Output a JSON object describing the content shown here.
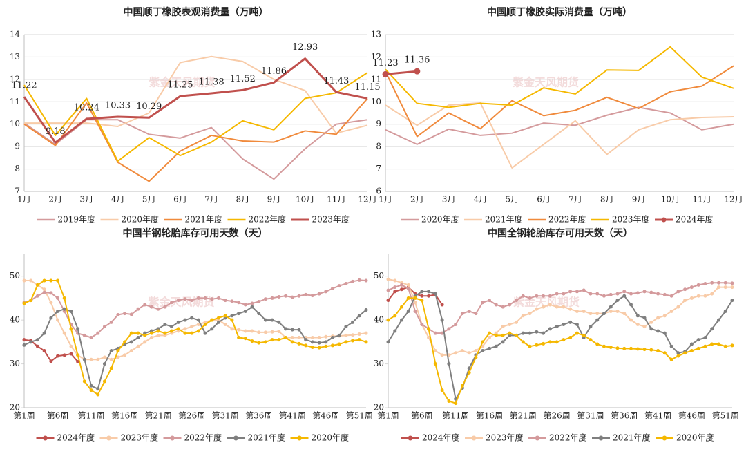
{
  "chart_data": [
    {
      "type": "line",
      "title": "中国顺丁橡胶表观消费量（万吨）",
      "watermark": "紫金天风期货",
      "categories": [
        "1月",
        "2月",
        "3月",
        "4月",
        "5月",
        "6月",
        "7月",
        "8月",
        "9月",
        "10月",
        "11月",
        "12月"
      ],
      "ylim": [
        7,
        14
      ],
      "yticks": [
        7,
        8,
        9,
        10,
        11,
        12,
        13,
        14
      ],
      "grid": true,
      "markers": false,
      "legend": "bottom",
      "series": [
        {
          "name": "2019年度",
          "color": "#d49a9c",
          "values": [
            10.05,
            9.1,
            10.2,
            10.2,
            9.55,
            9.38,
            9.85,
            8.45,
            7.55,
            8.9,
            10.0,
            10.2
          ]
        },
        {
          "name": "2020年度",
          "color": "#f8cba8",
          "values": [
            10.05,
            10.05,
            10.05,
            9.9,
            10.5,
            12.75,
            13.02,
            12.8,
            12.0,
            11.5,
            9.6,
            9.95
          ]
        },
        {
          "name": "2021年度",
          "color": "#f08a3c",
          "values": [
            10.0,
            9.05,
            10.95,
            8.3,
            7.45,
            8.8,
            9.5,
            9.25,
            9.2,
            9.7,
            9.55,
            11.15
          ]
        },
        {
          "name": "2022年度",
          "color": "#f5b800",
          "values": [
            11.75,
            9.5,
            11.15,
            8.35,
            9.4,
            8.6,
            9.2,
            10.15,
            9.75,
            11.15,
            11.4,
            12.3
          ]
        },
        {
          "name": "2023年度",
          "color": "#c0504d",
          "width": 3,
          "labels": true,
          "values": [
            11.22,
            9.18,
            10.24,
            10.33,
            10.29,
            11.25,
            11.38,
            11.52,
            11.86,
            12.93,
            11.43,
            11.15
          ]
        }
      ]
    },
    {
      "type": "line",
      "title": "中国顺丁橡胶实际消费量（万吨）",
      "watermark": "紫金天风期货",
      "categories": [
        "1月",
        "2月",
        "3月",
        "4月",
        "5月",
        "6月",
        "7月",
        "8月",
        "9月",
        "10月",
        "11月",
        "12月"
      ],
      "ylim": [
        6,
        13
      ],
      "yticks": [
        6,
        7,
        8,
        9,
        10,
        11,
        12,
        13
      ],
      "grid": true,
      "markers": false,
      "legend": "bottom",
      "series": [
        {
          "name": "2020年度",
          "color": "#d49a9c",
          "values": [
            8.75,
            8.1,
            8.78,
            8.5,
            8.6,
            9.05,
            8.95,
            9.4,
            9.75,
            9.5,
            8.75,
            9.0
          ]
        },
        {
          "name": "2021年度",
          "color": "#f8cba8",
          "values": [
            9.85,
            8.95,
            9.85,
            9.95,
            7.05,
            8.1,
            9.15,
            7.65,
            8.75,
            9.2,
            9.3,
            9.33
          ]
        },
        {
          "name": "2022年度",
          "color": "#f08a3c",
          "values": [
            11.35,
            8.45,
            9.5,
            8.8,
            10.05,
            9.38,
            9.62,
            10.2,
            9.7,
            10.45,
            10.7,
            11.6
          ]
        },
        {
          "name": "2023年度",
          "color": "#f5b800",
          "values": [
            11.45,
            9.93,
            9.75,
            9.93,
            9.85,
            10.62,
            10.35,
            11.42,
            11.4,
            12.45,
            11.1,
            10.6
          ]
        },
        {
          "name": "2024年度",
          "color": "#c0504d",
          "width": 3,
          "markers": true,
          "labels": true,
          "values": [
            11.23,
            11.36,
            null,
            null,
            null,
            null,
            null,
            null,
            null,
            null,
            null,
            null
          ]
        }
      ]
    },
    {
      "type": "line",
      "title": "中国半钢轮胎库存可用天数（天）",
      "watermark": "紫金天风期货",
      "categories": [
        "第1周",
        null,
        null,
        null,
        null,
        "第6周",
        null,
        null,
        null,
        null,
        "第11周",
        null,
        null,
        null,
        null,
        "第16周",
        null,
        null,
        null,
        null,
        "第21周",
        null,
        null,
        null,
        null,
        "第26周",
        null,
        null,
        null,
        null,
        "第31周",
        null,
        null,
        null,
        null,
        "第36周",
        null,
        null,
        null,
        null,
        "第41周",
        null,
        null,
        null,
        null,
        "第46周",
        null,
        null,
        null,
        null,
        "第51周",
        null
      ],
      "ylim": [
        20,
        55
      ],
      "yticks": [
        20,
        30,
        40,
        50
      ],
      "grid": false,
      "markers": true,
      "legend": "bottom",
      "series": [
        {
          "name": "2024年度",
          "color": "#c0504d",
          "values": [
            35.5,
            35.3,
            34,
            33,
            30.6,
            31.8,
            32,
            32.3,
            30.5,
            null,
            null,
            null,
            null,
            null,
            null,
            null,
            null,
            null,
            null,
            null,
            null,
            null,
            null,
            null,
            null,
            null,
            null,
            null,
            null,
            null,
            null,
            null,
            null,
            null,
            null,
            null,
            null,
            null,
            null,
            null,
            null,
            null,
            null,
            null,
            null,
            null,
            null,
            null,
            null,
            null,
            null,
            null
          ]
        },
        {
          "name": "2023年度",
          "color": "#f8cba8",
          "values": [
            49,
            49,
            48,
            47,
            44,
            40,
            37,
            34,
            32,
            31,
            31,
            31,
            31.5,
            31,
            31.5,
            32,
            33,
            34,
            35,
            36,
            36.5,
            36.5,
            37,
            37.5,
            38,
            38.5,
            39,
            39.5,
            40,
            40,
            39,
            38,
            37.8,
            37.5,
            37.5,
            37.2,
            37.2,
            37.3,
            37.4,
            36,
            36,
            36,
            36,
            36,
            36,
            36.2,
            36.3,
            36.4,
            36.5,
            36.6,
            36.8,
            37
          ]
        },
        {
          "name": "2022年度",
          "color": "#d49a9c",
          "values": [
            44,
            44.5,
            45.5,
            46.3,
            46.2,
            45,
            42,
            39,
            37,
            36.5,
            36,
            37,
            38.5,
            39.5,
            41.2,
            41.5,
            41.3,
            42.5,
            43.5,
            43,
            42.5,
            43,
            44,
            44.5,
            44.8,
            44.5,
            45,
            45,
            44.8,
            45,
            44.5,
            44.3,
            44,
            43.5,
            43.8,
            44.2,
            44.8,
            45,
            45.3,
            45.5,
            45.2,
            45.5,
            45.8,
            45.6,
            46,
            46.5,
            47.2,
            47.8,
            48.3,
            48.8,
            49.1,
            49
          ]
        },
        {
          "name": "2021年度",
          "color": "#7f7f7f",
          "values": [
            34.3,
            35,
            35.5,
            37,
            40.5,
            42,
            42.5,
            42,
            38,
            31,
            25,
            24.3,
            30,
            33,
            33.5,
            34.5,
            35,
            36,
            37,
            37.5,
            38,
            39,
            38.5,
            39.5,
            40,
            40.5,
            40,
            37,
            38,
            39.5,
            40.5,
            41,
            41.5,
            42,
            43,
            41.5,
            40,
            40,
            39.5,
            38,
            37.8,
            37.8,
            35.5,
            35,
            34.8,
            35,
            36,
            36.5,
            38.5,
            39.5,
            41,
            42.3
          ]
        },
        {
          "name": "2020年度",
          "color": "#f5b800",
          "values": [
            43.8,
            44.5,
            48,
            49,
            49,
            49,
            45,
            38,
            32,
            26,
            24,
            23,
            26,
            29,
            33,
            35,
            37,
            37,
            36.5,
            37,
            37.5,
            37,
            37.5,
            38,
            37,
            37,
            37.5,
            39,
            40,
            40.5,
            41,
            40,
            36,
            35.8,
            35.2,
            34.8,
            35,
            35.5,
            35.5,
            36,
            35,
            34.6,
            34.2,
            33.8,
            33.7,
            34,
            34.2,
            34.5,
            35,
            35.3,
            35.5,
            35
          ]
        }
      ]
    },
    {
      "type": "line",
      "title": "中国全钢轮胎库存可用天数（天）",
      "watermark": "紫金天风期货",
      "categories": [
        "第1周",
        null,
        null,
        null,
        null,
        "第6周",
        null,
        null,
        null,
        null,
        "第11周",
        null,
        null,
        null,
        null,
        "第16周",
        null,
        null,
        null,
        null,
        "第21周",
        null,
        null,
        null,
        null,
        "第26周",
        null,
        null,
        null,
        null,
        "第31周",
        null,
        null,
        null,
        null,
        "第36周",
        null,
        null,
        null,
        null,
        "第41周",
        null,
        null,
        null,
        null,
        "第46周",
        null,
        null,
        null,
        null,
        "第51周",
        null
      ],
      "ylim": [
        20,
        55
      ],
      "yticks": [
        20,
        30,
        40,
        50
      ],
      "grid": false,
      "markers": true,
      "legend": "bottom",
      "series": [
        {
          "name": "2024年度",
          "color": "#c0504d",
          "values": [
            44.5,
            46.5,
            47,
            47.5,
            46,
            45.5,
            45.5,
            45.8,
            43.5,
            null,
            null,
            null,
            null,
            null,
            null,
            null,
            null,
            null,
            null,
            null,
            null,
            null,
            null,
            null,
            null,
            null,
            null,
            null,
            null,
            null,
            null,
            null,
            null,
            null,
            null,
            null,
            null,
            null,
            null,
            null,
            null,
            null,
            null,
            null,
            null,
            null,
            null,
            null,
            null,
            null,
            null,
            null
          ]
        },
        {
          "name": "2023年度",
          "color": "#f8cba8",
          "values": [
            49.3,
            49,
            48.5,
            48,
            44,
            39,
            36,
            33,
            32,
            32,
            32.5,
            33,
            32.5,
            33,
            34,
            36,
            37,
            38.5,
            39,
            39.5,
            41,
            41.5,
            42.5,
            43,
            43.5,
            43,
            43,
            42.5,
            42,
            42,
            41.5,
            41.5,
            41.5,
            42,
            42,
            41.5,
            40,
            39,
            38.5,
            39.5,
            40.5,
            41,
            42,
            43,
            44.5,
            45,
            45.5,
            45.5,
            46,
            47.5,
            47.5,
            47.5
          ]
        },
        {
          "name": "2022年度",
          "color": "#d49a9c",
          "values": [
            46.8,
            47.5,
            48,
            47.2,
            42,
            39,
            38,
            37,
            37,
            38,
            39,
            41.5,
            42,
            41.5,
            44,
            44.5,
            43.5,
            43,
            43.5,
            44.5,
            45.5,
            45,
            45.5,
            45.5,
            45.5,
            46,
            46,
            46.5,
            46.5,
            46.8,
            46,
            46,
            45.5,
            45.8,
            46,
            46.5,
            46,
            46.2,
            46.5,
            46.3,
            46,
            45.8,
            45.5,
            46.5,
            47,
            47.5,
            48,
            48.3,
            48.5,
            48.5,
            48.5,
            48.4
          ]
        },
        {
          "name": "2021年度",
          "color": "#7f7f7f",
          "values": [
            35,
            37.5,
            40,
            42,
            45.5,
            46.5,
            46.5,
            46,
            40,
            30,
            22,
            24.5,
            29,
            32,
            33,
            33.5,
            34,
            35,
            36.5,
            36.5,
            37,
            37,
            37.3,
            37,
            38,
            38.5,
            39,
            39.5,
            39,
            36,
            38.5,
            40,
            41.5,
            43,
            44.5,
            45.5,
            43.5,
            41,
            40.5,
            38,
            37.5,
            37,
            34,
            32.5,
            32.8,
            34.5,
            35.5,
            36,
            38,
            40,
            42,
            44.5
          ]
        },
        {
          "name": "2020年度",
          "color": "#f5b800",
          "values": [
            40,
            41,
            43,
            45,
            45,
            44.5,
            38,
            30,
            24,
            21.5,
            21,
            25,
            28,
            31.5,
            35,
            37,
            36.5,
            36.5,
            37,
            36.5,
            35,
            34,
            34.3,
            34.6,
            35,
            35,
            35.5,
            36,
            37,
            36.5,
            35.5,
            34.5,
            34,
            33.8,
            33.6,
            33.5,
            33.5,
            33.4,
            33.3,
            33.2,
            33,
            32.5,
            31,
            31.8,
            32.5,
            33,
            33.5,
            34,
            34.5,
            34.5,
            34,
            34.2
          ]
        }
      ]
    }
  ]
}
